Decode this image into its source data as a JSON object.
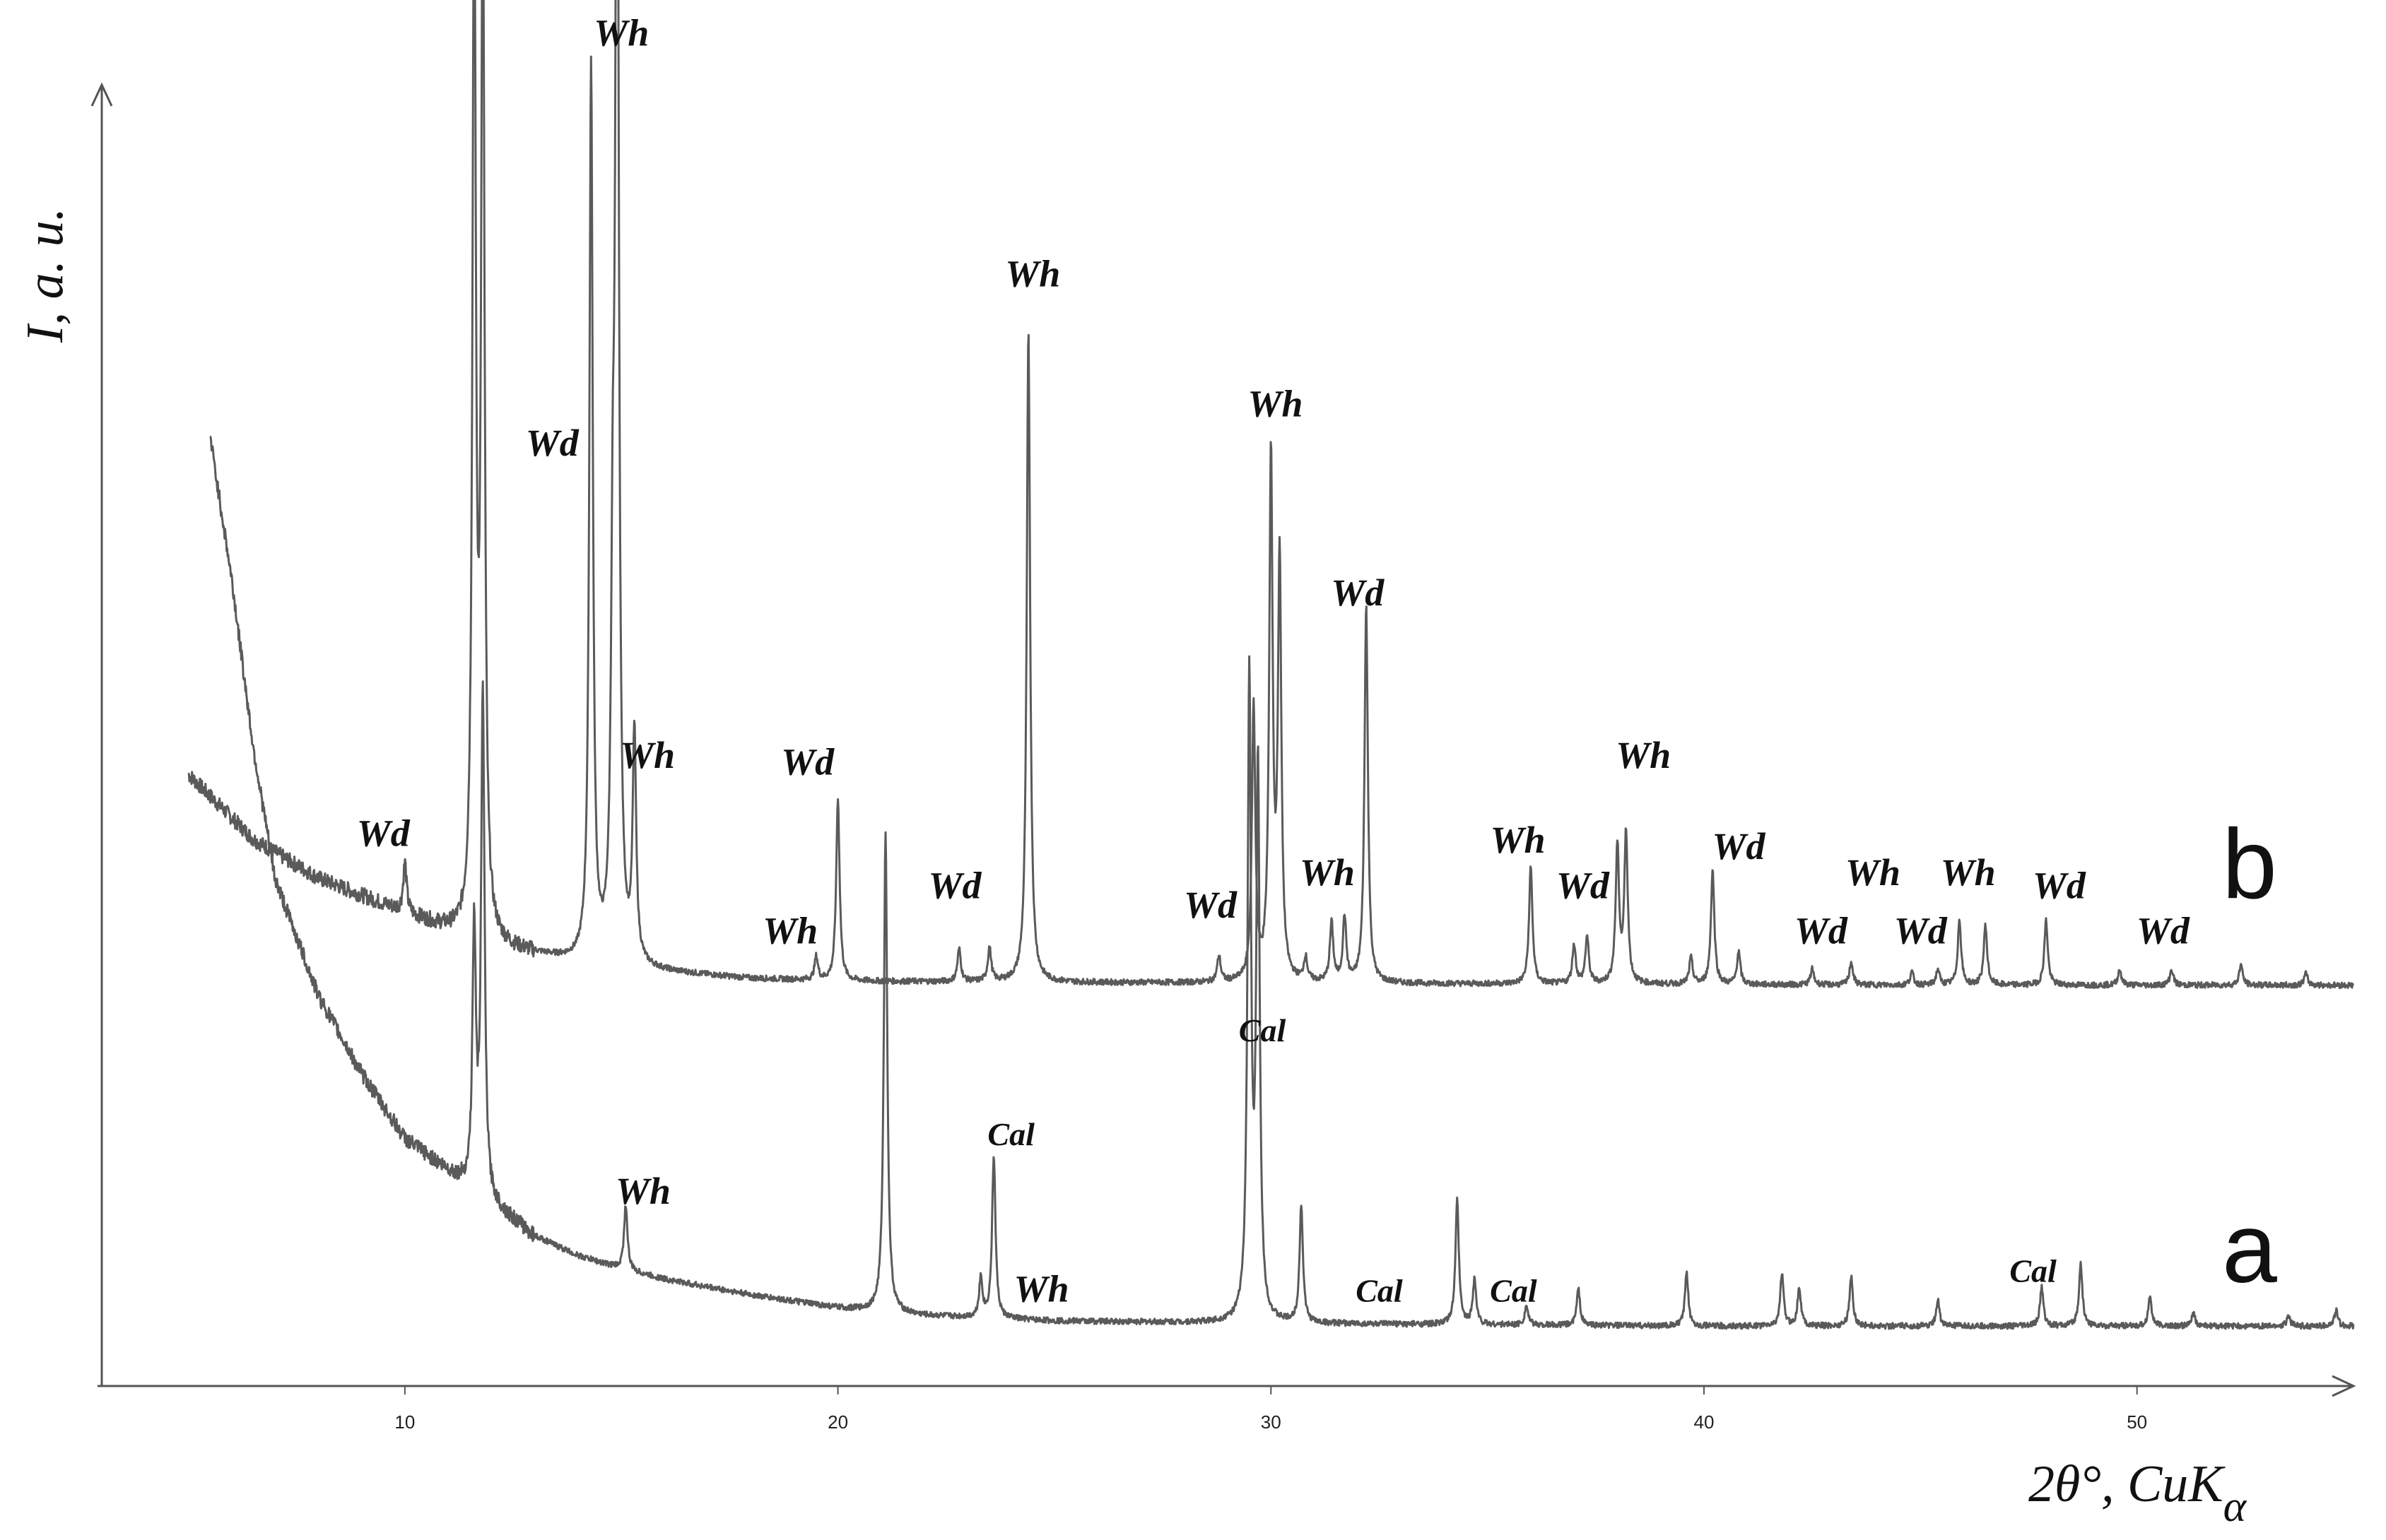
{
  "chart_data": {
    "type": "line",
    "title": "",
    "xlabel_main": "2θ°, CuK",
    "xlabel_sub": "α",
    "ylabel": "I, a. u.",
    "xlim": [
      3,
      55
    ],
    "ylim": [
      0,
      100
    ],
    "xticks": [
      10,
      20,
      30,
      40,
      50
    ],
    "grid": false,
    "series": [
      {
        "name": "b",
        "baseline": 31,
        "start": [
          [
            5.0,
            47.0
          ],
          [
            6.5,
            42.0
          ],
          [
            8.0,
            39.0
          ],
          [
            9.5,
            37.0
          ],
          [
            11.0,
            35.0
          ],
          [
            12.5,
            33.5
          ],
          [
            14.0,
            32.5
          ],
          [
            16.0,
            31.8
          ],
          [
            18.0,
            31.3
          ],
          [
            20.0,
            31.1
          ],
          [
            25.0,
            31.0
          ],
          [
            35.0,
            30.9
          ],
          [
            45.0,
            30.8
          ],
          [
            55.0,
            30.8
          ]
        ],
        "peaks": [
          [
            10.0,
            3.8
          ],
          [
            11.6,
            79.5
          ],
          [
            11.8,
            79.5
          ],
          [
            14.3,
            69.0
          ],
          [
            14.8,
            24.0
          ],
          [
            14.9,
            101.0
          ],
          [
            15.3,
            17.5
          ],
          [
            19.5,
            1.8
          ],
          [
            20.0,
            14.0
          ],
          [
            22.8,
            2.5
          ],
          [
            23.5,
            2.6
          ],
          [
            24.4,
            50.0
          ],
          [
            28.8,
            2.0
          ],
          [
            29.6,
            21.0
          ],
          [
            30.0,
            40.0
          ],
          [
            30.2,
            32.0
          ],
          [
            30.8,
            1.8
          ],
          [
            31.4,
            4.5
          ],
          [
            31.7,
            5.0
          ],
          [
            32.2,
            29.0
          ],
          [
            36.0,
            9.0
          ],
          [
            37.0,
            3.0
          ],
          [
            37.3,
            3.6
          ],
          [
            38.0,
            10.5
          ],
          [
            38.2,
            11.5
          ],
          [
            39.7,
            2.0
          ],
          [
            40.2,
            8.8
          ],
          [
            40.8,
            2.5
          ],
          [
            42.5,
            1.2
          ],
          [
            43.4,
            1.8
          ],
          [
            44.8,
            1.0
          ],
          [
            45.4,
            1.2
          ],
          [
            45.9,
            5.0
          ],
          [
            46.5,
            4.6
          ],
          [
            47.9,
            5.0
          ],
          [
            49.6,
            1.2
          ],
          [
            50.8,
            1.2
          ],
          [
            52.4,
            1.6
          ],
          [
            53.9,
            0.9
          ]
        ]
      },
      {
        "name": "a",
        "baseline": 4.5,
        "start": [
          [
            5.5,
            73.0
          ],
          [
            6.0,
            62.0
          ],
          [
            6.5,
            49.0
          ],
          [
            7.0,
            39.0
          ],
          [
            8.0,
            30.0
          ],
          [
            9.0,
            24.0
          ],
          [
            10.0,
            19.0
          ],
          [
            11.0,
            16.5
          ],
          [
            12.0,
            14.0
          ],
          [
            13.0,
            11.5
          ],
          [
            14.0,
            10.0
          ],
          [
            15.0,
            9.0
          ],
          [
            16.0,
            8.2
          ],
          [
            18.0,
            7.0
          ],
          [
            20.0,
            6.0
          ],
          [
            22.0,
            5.4
          ],
          [
            25.0,
            5.0
          ],
          [
            30.0,
            4.8
          ],
          [
            40.0,
            4.6
          ],
          [
            55.0,
            4.6
          ]
        ],
        "peaks": [
          [
            11.6,
            20.0
          ],
          [
            11.8,
            38.5
          ],
          [
            15.1,
            5.0
          ],
          [
            21.1,
            37.0
          ],
          [
            23.6,
            12.5
          ],
          [
            23.3,
            3.0
          ],
          [
            29.5,
            49.0
          ],
          [
            29.7,
            42.0
          ],
          [
            30.7,
            9.0
          ],
          [
            34.3,
            9.5
          ],
          [
            34.7,
            3.5
          ],
          [
            35.9,
            1.5
          ],
          [
            37.1,
            2.8
          ],
          [
            39.6,
            4.0
          ],
          [
            41.8,
            4.0
          ],
          [
            42.2,
            3.0
          ],
          [
            43.4,
            3.8
          ],
          [
            45.4,
            2.0
          ],
          [
            47.8,
            3.0
          ],
          [
            48.7,
            4.8
          ],
          [
            50.3,
            2.3
          ],
          [
            51.3,
            1.0
          ],
          [
            53.5,
            0.8
          ],
          [
            54.6,
            1.2
          ]
        ]
      }
    ],
    "peak_labels": [
      {
        "text": "Wh",
        "x": 15.0,
        "y": 103.0,
        "style": "wh"
      },
      {
        "text": "Wd",
        "x": 13.4,
        "y": 71.5,
        "style": "wd"
      },
      {
        "text": "Wh",
        "x": 15.6,
        "y": 47.5,
        "style": "wh"
      },
      {
        "text": "Wd",
        "x": 9.5,
        "y": 41.5,
        "style": "wd"
      },
      {
        "text": "Wd",
        "x": 19.3,
        "y": 47.0,
        "style": "wd"
      },
      {
        "text": "Wh",
        "x": 18.9,
        "y": 34.0,
        "style": "wh"
      },
      {
        "text": "Wh",
        "x": 24.5,
        "y": 84.5,
        "style": "wh"
      },
      {
        "text": "Wd",
        "x": 22.7,
        "y": 37.5,
        "style": "wd"
      },
      {
        "text": "Wh",
        "x": 30.1,
        "y": 74.5,
        "style": "wh"
      },
      {
        "text": "Wd",
        "x": 28.6,
        "y": 36.0,
        "style": "wd"
      },
      {
        "text": "Wh",
        "x": 31.3,
        "y": 38.5,
        "style": "wh"
      },
      {
        "text": "Wd",
        "x": 32.0,
        "y": 60.0,
        "style": "wd"
      },
      {
        "text": "Wh",
        "x": 35.7,
        "y": 41.0,
        "style": "wh"
      },
      {
        "text": "Wd",
        "x": 37.2,
        "y": 37.5,
        "style": "wd"
      },
      {
        "text": "Wh",
        "x": 38.6,
        "y": 47.5,
        "style": "wh"
      },
      {
        "text": "Wd",
        "x": 40.8,
        "y": 40.5,
        "style": "wd"
      },
      {
        "text": "Wd",
        "x": 42.7,
        "y": 34.0,
        "style": "wd"
      },
      {
        "text": "Wh",
        "x": 43.9,
        "y": 38.5,
        "style": "wh"
      },
      {
        "text": "Wd",
        "x": 45.0,
        "y": 34.0,
        "style": "wd"
      },
      {
        "text": "Wh",
        "x": 46.1,
        "y": 38.5,
        "style": "wh"
      },
      {
        "text": "Wd",
        "x": 48.2,
        "y": 37.5,
        "style": "wd"
      },
      {
        "text": "Wd",
        "x": 50.6,
        "y": 34.0,
        "style": "wd"
      },
      {
        "text": "Wh",
        "x": 15.5,
        "y": 14.0,
        "style": "wh"
      },
      {
        "text": "Cal",
        "x": 29.8,
        "y": 26.5,
        "style": "cal"
      },
      {
        "text": "Cal",
        "x": 24.0,
        "y": 18.5,
        "style": "cal"
      },
      {
        "text": "Wh",
        "x": 24.7,
        "y": 6.5,
        "style": "wh"
      },
      {
        "text": "Cal",
        "x": 32.5,
        "y": 6.5,
        "style": "cal"
      },
      {
        "text": "Cal",
        "x": 35.6,
        "y": 6.5,
        "style": "cal"
      },
      {
        "text": "Cal",
        "x": 47.6,
        "y": 8.0,
        "style": "cal"
      }
    ],
    "series_labels": [
      {
        "text": "b",
        "x": 52.6,
        "y": 37.5
      },
      {
        "text": "a",
        "x": 52.6,
        "y": 8.0
      }
    ]
  }
}
